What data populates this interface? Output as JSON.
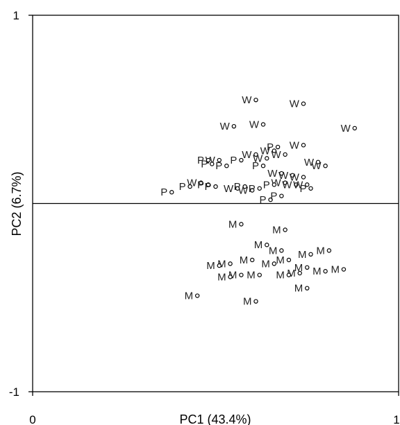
{
  "chart_data": {
    "type": "scatter",
    "title": "",
    "xlabel": "PC1 (43.4%)",
    "ylabel": "PC2 (6.7%)",
    "xlim": [
      0,
      1
    ],
    "ylim": [
      -1,
      1
    ],
    "x_ticks": [
      "0",
      "1"
    ],
    "y_ticks": [
      "1",
      "-1"
    ],
    "reference_line_y": 0,
    "grid": false,
    "legend": "none",
    "marker": "open-circle",
    "points": [
      {
        "label": "W",
        "x": 0.61,
        "y": 0.55
      },
      {
        "label": "W",
        "x": 0.74,
        "y": 0.53
      },
      {
        "label": "W",
        "x": 0.55,
        "y": 0.41
      },
      {
        "label": "W",
        "x": 0.63,
        "y": 0.42
      },
      {
        "label": "W",
        "x": 0.88,
        "y": 0.4
      },
      {
        "label": "W",
        "x": 0.74,
        "y": 0.31
      },
      {
        "label": "P",
        "x": 0.67,
        "y": 0.3
      },
      {
        "label": "W",
        "x": 0.66,
        "y": 0.28
      },
      {
        "label": "W",
        "x": 0.69,
        "y": 0.26
      },
      {
        "label": "W",
        "x": 0.61,
        "y": 0.26
      },
      {
        "label": "W",
        "x": 0.51,
        "y": 0.23
      },
      {
        "label": "P",
        "x": 0.48,
        "y": 0.23
      },
      {
        "label": "P",
        "x": 0.57,
        "y": 0.23
      },
      {
        "label": "W",
        "x": 0.64,
        "y": 0.24
      },
      {
        "label": "W",
        "x": 0.78,
        "y": 0.22
      },
      {
        "label": "W",
        "x": 0.8,
        "y": 0.2
      },
      {
        "label": "P",
        "x": 0.49,
        "y": 0.21
      },
      {
        "label": "P",
        "x": 0.63,
        "y": 0.2
      },
      {
        "label": "P",
        "x": 0.53,
        "y": 0.2
      },
      {
        "label": "W",
        "x": 0.71,
        "y": 0.15
      },
      {
        "label": "W",
        "x": 0.68,
        "y": 0.16
      },
      {
        "label": "W",
        "x": 0.74,
        "y": 0.14
      },
      {
        "label": "W",
        "x": 0.69,
        "y": 0.11
      },
      {
        "label": "W",
        "x": 0.72,
        "y": 0.1
      },
      {
        "label": "W",
        "x": 0.75,
        "y": 0.1
      },
      {
        "label": "W",
        "x": 0.46,
        "y": 0.11
      },
      {
        "label": "P",
        "x": 0.48,
        "y": 0.1
      },
      {
        "label": "P",
        "x": 0.5,
        "y": 0.09
      },
      {
        "label": "P",
        "x": 0.43,
        "y": 0.09
      },
      {
        "label": "W",
        "x": 0.56,
        "y": 0.08
      },
      {
        "label": "W",
        "x": 0.6,
        "y": 0.07
      },
      {
        "label": "P",
        "x": 0.58,
        "y": 0.09
      },
      {
        "label": "P",
        "x": 0.62,
        "y": 0.08
      },
      {
        "label": "P",
        "x": 0.66,
        "y": 0.1
      },
      {
        "label": "P",
        "x": 0.76,
        "y": 0.08
      },
      {
        "label": "P",
        "x": 0.38,
        "y": 0.06
      },
      {
        "label": "P",
        "x": 0.65,
        "y": 0.02
      },
      {
        "label": "P",
        "x": 0.68,
        "y": 0.04
      },
      {
        "label": "M",
        "x": 0.57,
        "y": -0.11
      },
      {
        "label": "M",
        "x": 0.69,
        "y": -0.14
      },
      {
        "label": "M",
        "x": 0.64,
        "y": -0.22
      },
      {
        "label": "M",
        "x": 0.68,
        "y": -0.25
      },
      {
        "label": "M",
        "x": 0.81,
        "y": -0.25
      },
      {
        "label": "M",
        "x": 0.76,
        "y": -0.27
      },
      {
        "label": "M",
        "x": 0.7,
        "y": -0.3
      },
      {
        "label": "M",
        "x": 0.6,
        "y": -0.3
      },
      {
        "label": "M",
        "x": 0.66,
        "y": -0.32
      },
      {
        "label": "M",
        "x": 0.54,
        "y": -0.32
      },
      {
        "label": "M",
        "x": 0.51,
        "y": -0.33
      },
      {
        "label": "M",
        "x": 0.75,
        "y": -0.34
      },
      {
        "label": "M",
        "x": 0.85,
        "y": -0.35
      },
      {
        "label": "M",
        "x": 0.8,
        "y": -0.36
      },
      {
        "label": "M",
        "x": 0.73,
        "y": -0.37
      },
      {
        "label": "M",
        "x": 0.7,
        "y": -0.38
      },
      {
        "label": "M",
        "x": 0.57,
        "y": -0.38
      },
      {
        "label": "M",
        "x": 0.62,
        "y": -0.38
      },
      {
        "label": "M",
        "x": 0.54,
        "y": -0.39
      },
      {
        "label": "M",
        "x": 0.75,
        "y": -0.45
      },
      {
        "label": "M",
        "x": 0.45,
        "y": -0.49
      },
      {
        "label": "M",
        "x": 0.61,
        "y": -0.52
      }
    ]
  }
}
